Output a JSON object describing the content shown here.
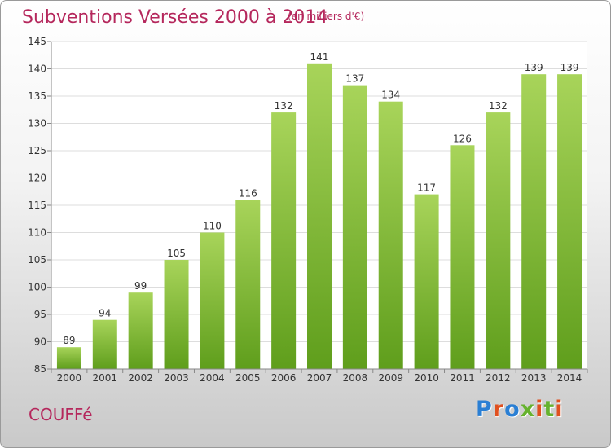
{
  "title": "Subventions Versées 2000 à 2014",
  "subtitle": "(en milliers d'€)",
  "commune": "COUFFé",
  "logo": {
    "text": "Proxiti",
    "colors": [
      "#2a7fd4",
      "#e0501f",
      "#2a7fd4",
      "#66b22e",
      "#e0501f",
      "#66b22e",
      "#e0501f"
    ]
  },
  "colors": {
    "title": "#b5275c",
    "bar_light": "#a8d45a",
    "bar_dark": "#5f9e1c",
    "grid": "#dddddd"
  },
  "chart_data": {
    "type": "bar",
    "categories": [
      "2000",
      "2001",
      "2002",
      "2003",
      "2004",
      "2005",
      "2006",
      "2007",
      "2008",
      "2009",
      "2010",
      "2011",
      "2012",
      "2013",
      "2014"
    ],
    "values": [
      89,
      94,
      99,
      105,
      110,
      116,
      132,
      141,
      137,
      134,
      117,
      126,
      132,
      139,
      139
    ],
    "ylim": [
      85,
      145
    ],
    "yticks": [
      85,
      90,
      95,
      100,
      105,
      110,
      115,
      120,
      125,
      130,
      135,
      140,
      145
    ],
    "title": "Subventions Versées 2000 à 2014",
    "ylabel": "",
    "xlabel": "",
    "grid": true,
    "data_labels": true
  }
}
